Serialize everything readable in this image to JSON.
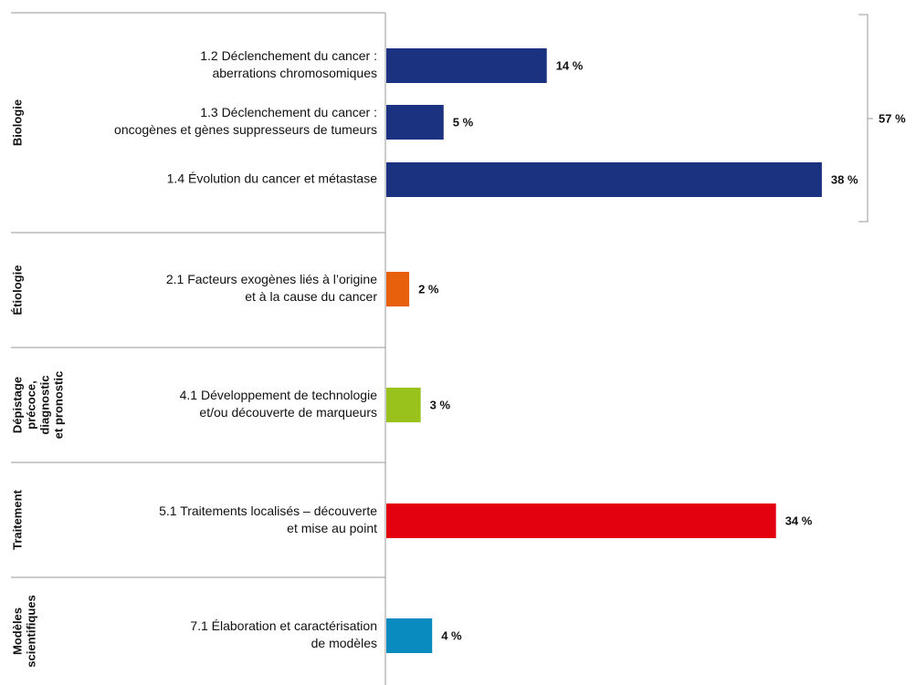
{
  "chart_data": {
    "type": "bar",
    "orientation": "horizontal",
    "groups": [
      {
        "name": [
          "Biologie"
        ],
        "color": "#1b3280",
        "total": 57,
        "total_label": "57 %",
        "items": [
          {
            "label": [
              "1.2 Déclenchement du cancer :",
              "aberrations chromosomiques"
            ],
            "value": 14,
            "value_label": "14 %"
          },
          {
            "label": [
              "1.3 Déclenchement du cancer :",
              "oncogènes et gènes suppresseurs de tumeurs"
            ],
            "value": 5,
            "value_label": "5 %"
          },
          {
            "label": [
              "1.4 Évolution du cancer et métastase"
            ],
            "value": 38,
            "value_label": "38 %"
          }
        ]
      },
      {
        "name": [
          "Étiologie"
        ],
        "color": "#e8600c",
        "items": [
          {
            "label": [
              "2.1 Facteurs exogènes liés à l’origine",
              "et à la cause du cancer"
            ],
            "value": 2,
            "value_label": "2 %"
          }
        ]
      },
      {
        "name": [
          "Dépistage",
          "précoce,",
          "diagnostic",
          "et pronostic"
        ],
        "color": "#99c21c",
        "items": [
          {
            "label": [
              "4.1 Développement de technologie",
              "et/ou découverte de marqueurs"
            ],
            "value": 3,
            "value_label": "3 %"
          }
        ]
      },
      {
        "name": [
          "Traitement"
        ],
        "color": "#e3000f",
        "items": [
          {
            "label": [
              "5.1 Traitements localisés – découverte",
              "et mise au point"
            ],
            "value": 34,
            "value_label": "34 %"
          }
        ]
      },
      {
        "name": [
          "Modèles",
          "scientifiques"
        ],
        "color": "#0a8bbf",
        "items": [
          {
            "label": [
              "7.1 Élaboration et caractérisation",
              "de modèles"
            ],
            "value": 4,
            "value_label": "4 %"
          }
        ]
      }
    ]
  }
}
